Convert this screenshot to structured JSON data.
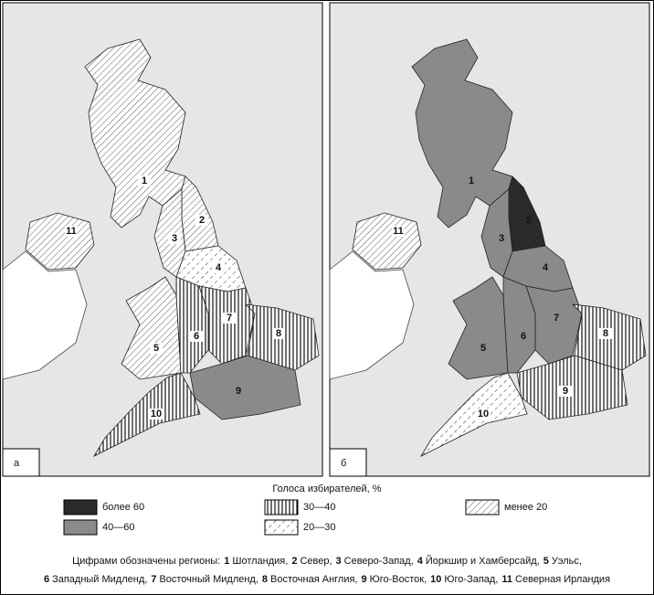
{
  "panels": [
    {
      "label": "а",
      "regions": [
        {
          "number": "1",
          "legend_item": 4
        },
        {
          "number": "2",
          "legend_item": 4
        },
        {
          "number": "3",
          "legend_item": 4
        },
        {
          "number": "4",
          "legend_item": 3
        },
        {
          "number": "5",
          "legend_item": 4
        },
        {
          "number": "6",
          "legend_item": 2
        },
        {
          "number": "7",
          "legend_item": 2
        },
        {
          "number": "8",
          "legend_item": 2
        },
        {
          "number": "9",
          "legend_item": 1
        },
        {
          "number": "10",
          "legend_item": 2
        },
        {
          "number": "11",
          "legend_item": 4
        }
      ]
    },
    {
      "label": "б",
      "regions": [
        {
          "number": "1",
          "legend_item": 1
        },
        {
          "number": "2",
          "legend_item": 0
        },
        {
          "number": "3",
          "legend_item": 1
        },
        {
          "number": "4",
          "legend_item": 1
        },
        {
          "number": "5",
          "legend_item": 1
        },
        {
          "number": "6",
          "legend_item": 1
        },
        {
          "number": "7",
          "legend_item": 1
        },
        {
          "number": "8",
          "legend_item": 2
        },
        {
          "number": "9",
          "legend_item": 2
        },
        {
          "number": "10",
          "legend_item": 3
        },
        {
          "number": "11",
          "legend_item": 4
        }
      ]
    }
  ],
  "legend": {
    "title": "Голоса избирателей, %",
    "items": [
      {
        "label": "более 60",
        "style": "dark"
      },
      {
        "label": "40—60",
        "style": "mid"
      },
      {
        "label": "30—40",
        "style": "vertical"
      },
      {
        "label": "20—30",
        "style": "dashed"
      },
      {
        "label": "менее 20",
        "style": "diagonal"
      }
    ]
  },
  "caption": {
    "prefix": "Цифрами обозначены регионы:",
    "lines": [
      [
        {
          "number": "1",
          "name": "Шотландия,"
        },
        {
          "number": "2",
          "name": "Север,"
        },
        {
          "number": "3",
          "name": "Северо-Запад,"
        },
        {
          "number": "4",
          "name": "Йоркшир и Хамберсайд,"
        },
        {
          "number": "5",
          "name": "Уэльс,"
        }
      ],
      [
        {
          "number": "6",
          "name": "Западный Мидленд,"
        },
        {
          "number": "7",
          "name": "Восточный Мидленд,"
        },
        {
          "number": "8",
          "name": "Восточная Англия,"
        },
        {
          "number": "9",
          "name": "Юго-Восток,"
        },
        {
          "number": "10",
          "name": "Юго-Запад,"
        },
        {
          "number": "11",
          "name": "Северная Ирландия"
        }
      ]
    ]
  }
}
